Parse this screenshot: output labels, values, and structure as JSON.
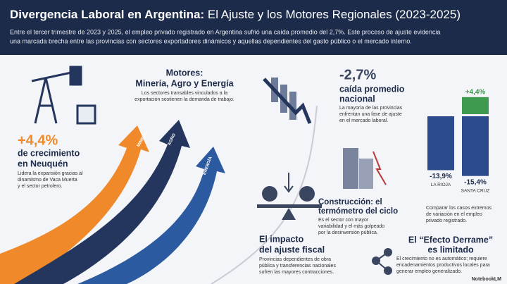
{
  "header": {
    "title_bold": "Divergencia Laboral en Argentina:",
    "title_rest": "El Ajuste y los Motores Regionales (2023-2025)",
    "intro": [
      "Entre el tercer trimestre de 2023 y 2025, el empleo privado registrado en Argentina sufrió una caída promedio del 2,7%. Este proceso de ajuste evidencia",
      "una marcada brecha entre las provincias con sectores exportadores dinámicos y aquellas dependientes del gasto público o el mercado interno."
    ]
  },
  "motores": {
    "title": [
      "Motores:",
      "Minería, Agro y Energía"
    ],
    "text": [
      "Los sectores transables vinculados a la",
      "exportación sostienen la demanda de trabajo."
    ],
    "arrows": [
      "MINERÍA",
      "AGRO",
      "ENERGÍA"
    ]
  },
  "neuquen": {
    "figure": "+4,4%",
    "title": [
      "de crecimiento",
      "en Neuquén"
    ],
    "text": [
      "Lidera la expansión gracias al",
      "dinamismo de Vaca Muerta",
      "y el sector petrolero."
    ]
  },
  "caida": {
    "figure": "-2,7%",
    "title": [
      "caída promedio",
      "nacional"
    ],
    "text": [
      "La mayoría de las provincias",
      "enfrentan una fase de ajuste",
      "en el mercado laboral."
    ]
  },
  "chart_data": {
    "type": "bar",
    "categories": [
      "LA RIOJA",
      "SANTA CRUZ"
    ],
    "series": [
      {
        "color": "#2b4b8c",
        "values": [
          -13.9,
          -15.4
        ],
        "value_labels": [
          "-13,9%",
          "-15,4%"
        ]
      },
      {
        "color": "#3d9a4e",
        "values": [
          null,
          4.4
        ],
        "value_labels": [
          null,
          "+4,4%"
        ]
      }
    ],
    "ylim": [
      -16,
      8
    ],
    "caption": [
      "Comparar los casos extremos",
      "de variación en el empleo",
      "privado registrado."
    ]
  },
  "construccion": {
    "title": [
      "Construcción: el",
      "termómetro del ciclo"
    ],
    "text": [
      "Es el sector con mayor",
      "variabilidad y el más golpeado",
      "por la desinversión pública."
    ]
  },
  "fiscal": {
    "title": [
      "El impacto",
      "del ajuste fiscal"
    ],
    "text": [
      "Provincias dependientes de obra",
      "pública y transferencias nacionales",
      "sufren las mayores contracciones."
    ]
  },
  "derrame": {
    "title": [
      "El “Efecto Derrame”",
      "es limitado"
    ],
    "text": [
      "El crecimiento no es automático; requiere",
      "encadenamientos productivos locales para",
      "generar empleo generalizado."
    ]
  },
  "footer": "NotebookLM"
}
